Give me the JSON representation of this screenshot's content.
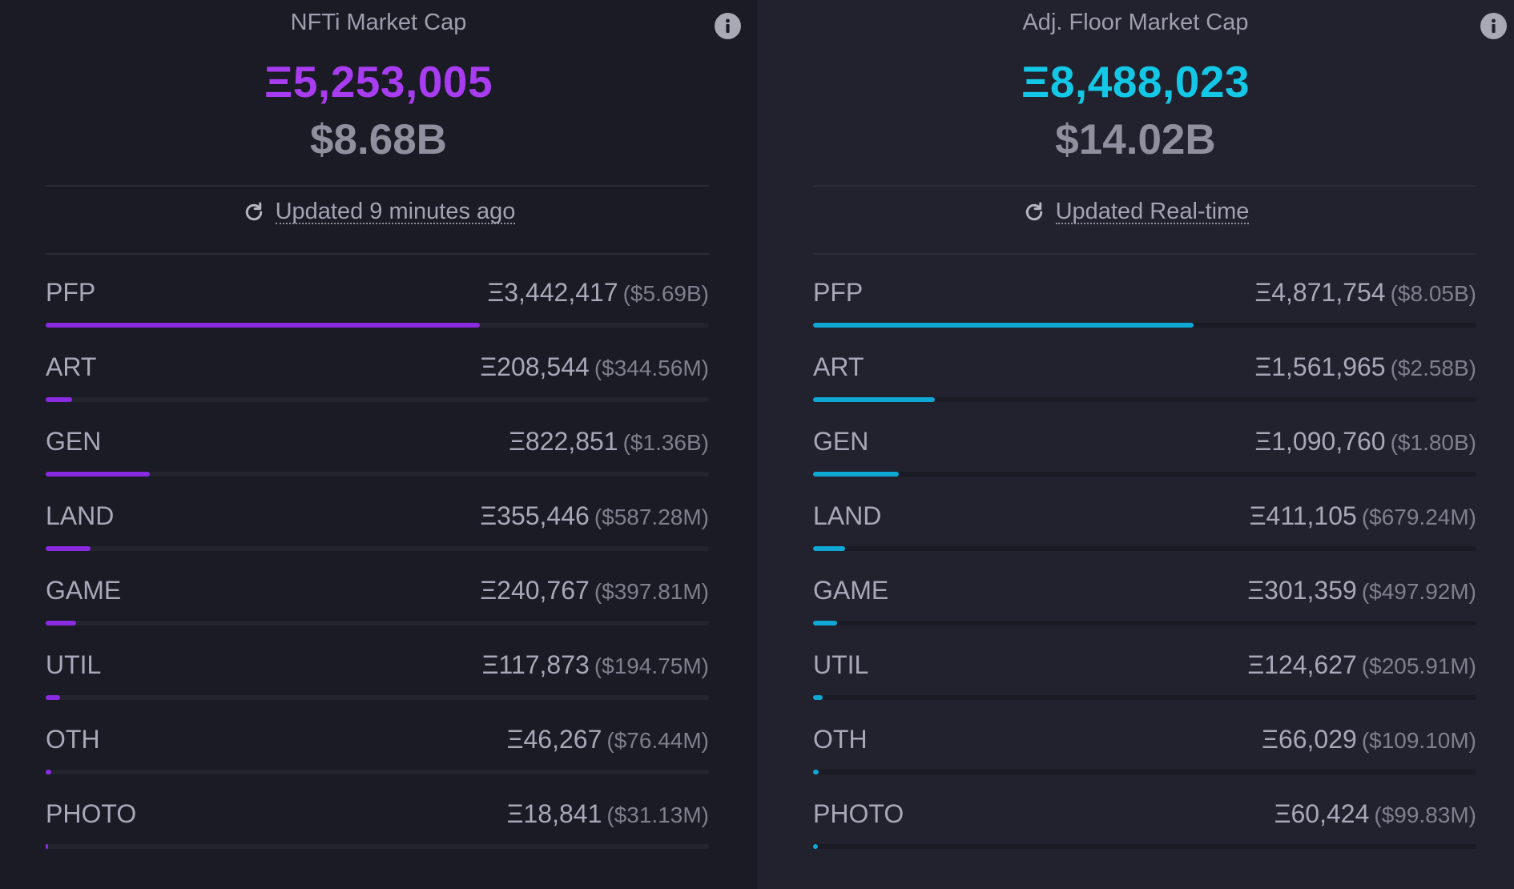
{
  "panels": [
    {
      "title": "NFTi Market Cap",
      "eth_total": "Ξ5,253,005",
      "usd_total": "$8.68B",
      "updated": "Updated 9 minutes ago",
      "accent": "#a73cf0",
      "bar_color": "#8a2be2",
      "rows": [
        {
          "label": "PFP",
          "eth": "Ξ3,442,417",
          "usd": "($5.69B)",
          "pct": 0.655
        },
        {
          "label": "ART",
          "eth": "Ξ208,544",
          "usd": "($344.56M)",
          "pct": 0.04
        },
        {
          "label": "GEN",
          "eth": "Ξ822,851",
          "usd": "($1.36B)",
          "pct": 0.157
        },
        {
          "label": "LAND",
          "eth": "Ξ355,446",
          "usd": "($587.28M)",
          "pct": 0.068
        },
        {
          "label": "GAME",
          "eth": "Ξ240,767",
          "usd": "($397.81M)",
          "pct": 0.046
        },
        {
          "label": "UTIL",
          "eth": "Ξ117,873",
          "usd": "($194.75M)",
          "pct": 0.022
        },
        {
          "label": "OTH",
          "eth": "Ξ46,267",
          "usd": "($76.44M)",
          "pct": 0.009
        },
        {
          "label": "PHOTO",
          "eth": "Ξ18,841",
          "usd": "($31.13M)",
          "pct": 0.004
        }
      ]
    },
    {
      "title": "Adj. Floor Market Cap",
      "eth_total": "Ξ8,488,023",
      "usd_total": "$14.02B",
      "updated": "Updated Real-time",
      "accent": "#12c8e6",
      "bar_color": "#0fa8d4",
      "rows": [
        {
          "label": "PFP",
          "eth": "Ξ4,871,754",
          "usd": "($8.05B)",
          "pct": 0.574
        },
        {
          "label": "ART",
          "eth": "Ξ1,561,965",
          "usd": "($2.58B)",
          "pct": 0.184
        },
        {
          "label": "GEN",
          "eth": "Ξ1,090,760",
          "usd": "($1.80B)",
          "pct": 0.129
        },
        {
          "label": "LAND",
          "eth": "Ξ411,105",
          "usd": "($679.24M)",
          "pct": 0.048
        },
        {
          "label": "GAME",
          "eth": "Ξ301,359",
          "usd": "($497.92M)",
          "pct": 0.036
        },
        {
          "label": "UTIL",
          "eth": "Ξ124,627",
          "usd": "($205.91M)",
          "pct": 0.015
        },
        {
          "label": "OTH",
          "eth": "Ξ66,029",
          "usd": "($109.10M)",
          "pct": 0.008
        },
        {
          "label": "PHOTO",
          "eth": "Ξ60,424",
          "usd": "($99.83M)",
          "pct": 0.007
        }
      ]
    }
  ]
}
